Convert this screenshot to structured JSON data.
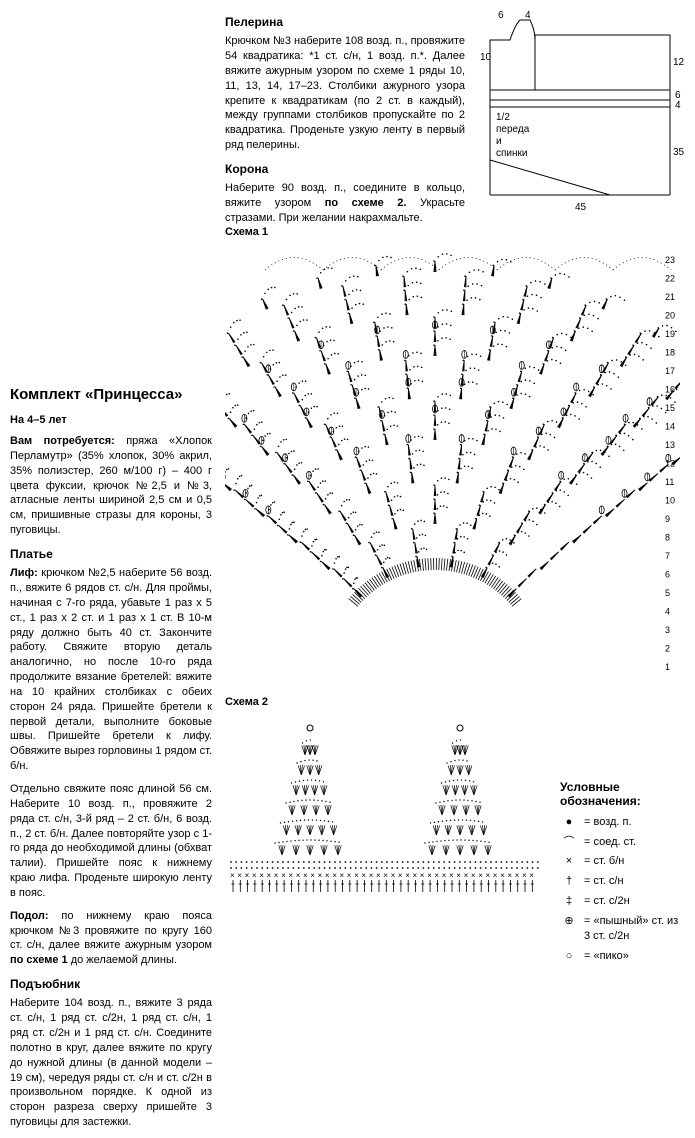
{
  "top": {
    "pelerina_title": "Пелерина",
    "pelerina_text": "Крючком №3 наберите 108 возд. п., провяжите 54 квадратика: *1 ст. с/н, 1 возд. п.*. Далее вяжите ажурным узором по схеме 1 ряды 10, 11, 13, 14, 17–23. Столбики ажурного узора крепите к квадратикам (по 2 ст. в каждый), между группами столбиков пропускайте по 2 квадратика. Проденьте узкую ленту в первый ряд пелерины.",
    "korona_title": "Корона",
    "korona_text": "Наберите 90 возд. п., соедините в кольцо, вяжите узором по схеме 2. Украсьте стразами. При желании накрахмальте."
  },
  "diagram": {
    "dim_6a": "6",
    "dim_4": "4",
    "dim_10": "10",
    "dim_12": "12",
    "dim_6b": "6",
    "dim_4b": "4",
    "dim_35": "35",
    "dim_45": "45",
    "label": "1/2\nпереда\nи\nспинки"
  },
  "left": {
    "title": "Комплект «Принцесса»",
    "age": "На 4–5 лет",
    "materials_label": "Вам потребуется:",
    "materials": " пряжа «Хлопок Перламутр» (35% хлопок, 30% акрил, 35% полиэстер, 260 м/100 г) – 400 г цвета фуксии, крючок №2,5 и №3, атласные ленты шириной 2,5 см и 0,5 см, пришивные стразы для короны, 3 пуговицы.",
    "platie_title": "Платье",
    "lif_label": "Лиф:",
    "lif_text": " крючком №2,5 наберите 56 возд. п., вяжите 6 рядов ст. с/н. Для проймы, начиная с 7-го ряда, убавьте 1 раз х 5 ст., 1 раз х 2 ст. и 1 раз х 1 ст. В 10-м ряду должно быть 40 ст. Закончите работу. Свяжите вторую деталь аналогично, но после 10-го ряда продолжите вязание бретелей: вяжите на 10 крайних столбиках с обеих сторон 24 ряда. Пришейте бретели к первой детали, выполните боковые швы. Пришейте бретели к лифу. Обвяжите вырез горловины 1 рядом ст. б/н.",
    "belt_text": "Отдельно свяжите пояс длиной 56 см. Наберите 10 возд. п., провяжите 2 ряда ст. с/н, 3-й ряд – 2 ст. б/н, 6 возд. п., 2 ст. б/н. Далее повторяйте узор с 1-го ряда до необходимой длины (обхват талии). Пришейте пояс к нижнему краю лифа. Проденьте широкую ленту в пояс.",
    "podol_label": "Подол:",
    "podol_text": " по нижнему краю пояса крючком №3 провяжите по кругу 160 ст. с/н, далее вяжите ажурным узором по схеме 1 до желаемой длины.",
    "podyubnik_title": "Подъюбник",
    "podyubnik_text": "Наберите 104 возд. п., вяжите 3 ряда ст. с/н, 1 ряд ст. с/2н, 1 ряд ст. с/н, 1 ряд ст. с/2н и 1 ряд ст. с/н. Соедините полотно в круг, далее вяжите по кругу до нужной длины (в данной модели – 19 см), чередуя ряды ст. с/н и ст. с/2н в произвольном порядке. К одной из сторон разреза сверху пришейте 3 пуговицы для застежки."
  },
  "schema1_label": "Схема 1",
  "schema2_label": "Схема 2",
  "legend": {
    "title": "Условные обозначения:",
    "items": [
      {
        "sym": "●",
        "txt": "= возд. п."
      },
      {
        "sym": "⌒",
        "txt": "= соед. ст."
      },
      {
        "sym": "×",
        "txt": "= ст. б/н"
      },
      {
        "sym": "†",
        "txt": "= ст. с/н"
      },
      {
        "sym": "‡",
        "txt": "= ст. с/2н"
      },
      {
        "sym": "⊕",
        "txt": "= «пышный» ст. из 3 ст. с/2н"
      },
      {
        "sym": "○",
        "txt": "= «пико»"
      }
    ]
  },
  "row_numbers": [
    "1",
    "2",
    "3",
    "4",
    "5",
    "6",
    "7",
    "8",
    "9",
    "10",
    "11",
    "12",
    "13",
    "14",
    "15",
    "16",
    "17",
    "18",
    "19",
    "20",
    "21",
    "22",
    "23"
  ]
}
